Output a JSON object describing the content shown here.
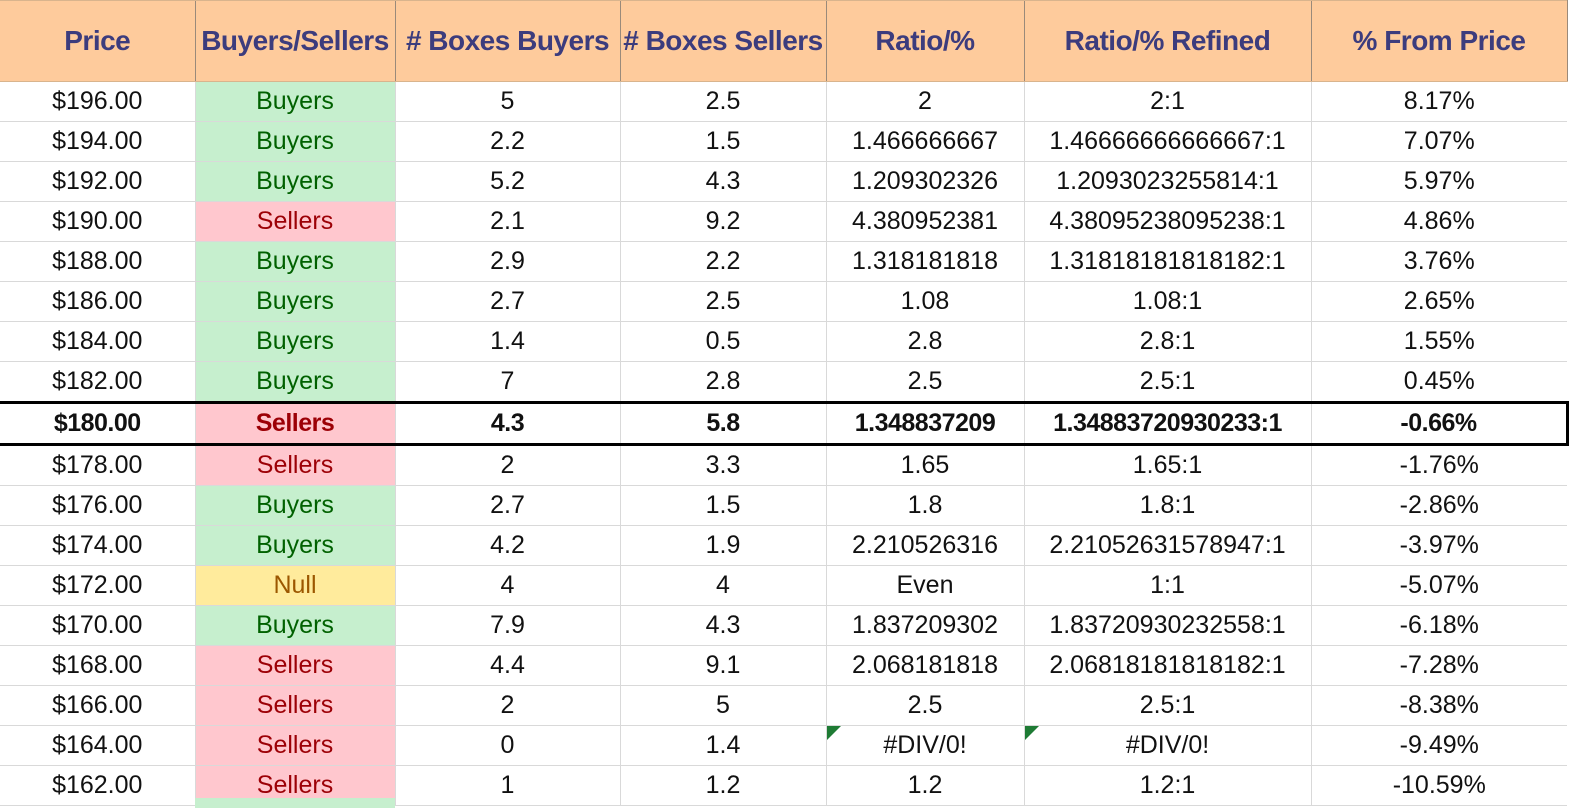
{
  "table": {
    "headers": [
      "Price",
      "Buyers/Sellers",
      "# Boxes Buyers",
      "# Boxes Sellers",
      "Ratio/%",
      "Ratio/% Refined",
      "% From Price"
    ],
    "current_price_row": 8,
    "rows": [
      {
        "price": "$196.00",
        "side": "Buyers",
        "boxes_buyers": "5",
        "boxes_sellers": "2.5",
        "ratio": "2",
        "ratio_refined": "2:1",
        "from_price": "8.17%"
      },
      {
        "price": "$194.00",
        "side": "Buyers",
        "boxes_buyers": "2.2",
        "boxes_sellers": "1.5",
        "ratio": "1.466666667",
        "ratio_refined": "1.46666666666667:1",
        "from_price": "7.07%"
      },
      {
        "price": "$192.00",
        "side": "Buyers",
        "boxes_buyers": "5.2",
        "boxes_sellers": "4.3",
        "ratio": "1.209302326",
        "ratio_refined": "1.2093023255814:1",
        "from_price": "5.97%"
      },
      {
        "price": "$190.00",
        "side": "Sellers",
        "boxes_buyers": "2.1",
        "boxes_sellers": "9.2",
        "ratio": "4.380952381",
        "ratio_refined": "4.38095238095238:1",
        "from_price": "4.86%"
      },
      {
        "price": "$188.00",
        "side": "Buyers",
        "boxes_buyers": "2.9",
        "boxes_sellers": "2.2",
        "ratio": "1.318181818",
        "ratio_refined": "1.31818181818182:1",
        "from_price": "3.76%"
      },
      {
        "price": "$186.00",
        "side": "Buyers",
        "boxes_buyers": "2.7",
        "boxes_sellers": "2.5",
        "ratio": "1.08",
        "ratio_refined": "1.08:1",
        "from_price": "2.65%"
      },
      {
        "price": "$184.00",
        "side": "Buyers",
        "boxes_buyers": "1.4",
        "boxes_sellers": "0.5",
        "ratio": "2.8",
        "ratio_refined": "2.8:1",
        "from_price": "1.55%"
      },
      {
        "price": "$182.00",
        "side": "Buyers",
        "boxes_buyers": "7",
        "boxes_sellers": "2.8",
        "ratio": "2.5",
        "ratio_refined": "2.5:1",
        "from_price": "0.45%"
      },
      {
        "price": "$180.00",
        "side": "Sellers",
        "boxes_buyers": "4.3",
        "boxes_sellers": "5.8",
        "ratio": "1.348837209",
        "ratio_refined": "1.34883720930233:1",
        "from_price": "-0.66%"
      },
      {
        "price": "$178.00",
        "side": "Sellers",
        "boxes_buyers": "2",
        "boxes_sellers": "3.3",
        "ratio": "1.65",
        "ratio_refined": "1.65:1",
        "from_price": "-1.76%"
      },
      {
        "price": "$176.00",
        "side": "Buyers",
        "boxes_buyers": "2.7",
        "boxes_sellers": "1.5",
        "ratio": "1.8",
        "ratio_refined": "1.8:1",
        "from_price": "-2.86%"
      },
      {
        "price": "$174.00",
        "side": "Buyers",
        "boxes_buyers": "4.2",
        "boxes_sellers": "1.9",
        "ratio": "2.210526316",
        "ratio_refined": "2.21052631578947:1",
        "from_price": "-3.97%"
      },
      {
        "price": "$172.00",
        "side": "Null",
        "boxes_buyers": "4",
        "boxes_sellers": "4",
        "ratio": "Even",
        "ratio_refined": "1:1",
        "from_price": "-5.07%"
      },
      {
        "price": "$170.00",
        "side": "Buyers",
        "boxes_buyers": "7.9",
        "boxes_sellers": "4.3",
        "ratio": "1.837209302",
        "ratio_refined": "1.83720930232558:1",
        "from_price": "-6.18%"
      },
      {
        "price": "$168.00",
        "side": "Sellers",
        "boxes_buyers": "4.4",
        "boxes_sellers": "9.1",
        "ratio": "2.068181818",
        "ratio_refined": "2.06818181818182:1",
        "from_price": "-7.28%"
      },
      {
        "price": "$166.00",
        "side": "Sellers",
        "boxes_buyers": "2",
        "boxes_sellers": "5",
        "ratio": "2.5",
        "ratio_refined": "2.5:1",
        "from_price": "-8.38%"
      },
      {
        "price": "$164.00",
        "side": "Sellers",
        "boxes_buyers": "0",
        "boxes_sellers": "1.4",
        "ratio": "#DIV/0!",
        "ratio_refined": "#DIV/0!",
        "from_price": "-9.49%",
        "error_flags": true
      },
      {
        "price": "$162.00",
        "side": "Sellers",
        "boxes_buyers": "1",
        "boxes_sellers": "1.2",
        "ratio": "1.2",
        "ratio_refined": "1.2:1",
        "from_price": "-10.59%"
      }
    ]
  },
  "colors": {
    "header_bg": "#fecb9c",
    "header_text": "#3c3c7d",
    "buyers_bg": "#c6efce",
    "buyers_text": "#006100",
    "sellers_bg": "#ffc7ce",
    "sellers_text": "#9c0006",
    "null_bg": "#ffeb9c",
    "null_text": "#9c5700",
    "error_flag": "#1e7b34"
  }
}
